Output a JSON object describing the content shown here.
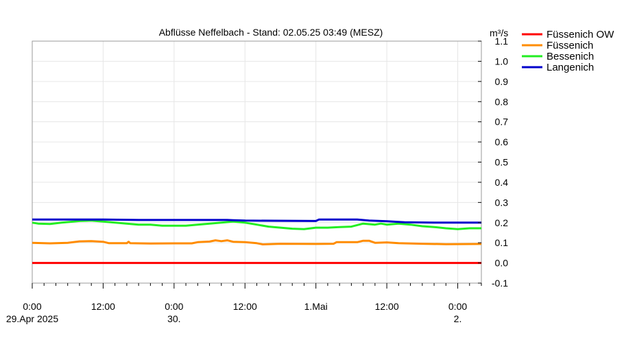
{
  "chart_data": {
    "type": "line",
    "title": "Abflüsse Neffelbach - Stand: 02.05.25 03:49 (MESZ)",
    "ylabel": "m³/s",
    "ylim": [
      -0.1,
      1.1
    ],
    "yticks": [
      "-0.1",
      "0.0",
      "0.1",
      "0.2",
      "0.3",
      "0.4",
      "0.5",
      "0.6",
      "0.7",
      "0.8",
      "0.9",
      "1.0",
      "1.1"
    ],
    "xlim": [
      0,
      76
    ],
    "xticks": [
      {
        "h": 0,
        "line1": "0:00",
        "line2": "29.Apr 2025"
      },
      {
        "h": 12,
        "line1": "12:00",
        "line2": ""
      },
      {
        "h": 24,
        "line1": "0:00",
        "line2": "30."
      },
      {
        "h": 36,
        "line1": "12:00",
        "line2": ""
      },
      {
        "h": 48,
        "line1": "1.Mai",
        "line2": ""
      },
      {
        "h": 60,
        "line1": "12:00",
        "line2": ""
      },
      {
        "h": 72,
        "line1": "0:00",
        "line2": "2."
      }
    ],
    "grid": true,
    "legend": "top-right",
    "x_unit": "hours since 29.Apr 2025 0:00",
    "series": [
      {
        "name": "Füssenich OW",
        "color": "#ff0000",
        "points": [
          [
            0,
            0.0
          ],
          [
            76,
            0.0
          ]
        ]
      },
      {
        "name": "Füssenich",
        "color": "#ff8c00",
        "points": [
          [
            0,
            0.1
          ],
          [
            3,
            0.097
          ],
          [
            6,
            0.1
          ],
          [
            8,
            0.107
          ],
          [
            10,
            0.108
          ],
          [
            12,
            0.105
          ],
          [
            13,
            0.098
          ],
          [
            16,
            0.098
          ],
          [
            16.3,
            0.105
          ],
          [
            16.6,
            0.098
          ],
          [
            20,
            0.096
          ],
          [
            24,
            0.097
          ],
          [
            27,
            0.097
          ],
          [
            28,
            0.103
          ],
          [
            30,
            0.106
          ],
          [
            31,
            0.112
          ],
          [
            32,
            0.108
          ],
          [
            33,
            0.112
          ],
          [
            34,
            0.105
          ],
          [
            36,
            0.103
          ],
          [
            38,
            0.098
          ],
          [
            39,
            0.092
          ],
          [
            42,
            0.095
          ],
          [
            48,
            0.094
          ],
          [
            51,
            0.095
          ],
          [
            51.5,
            0.103
          ],
          [
            55,
            0.103
          ],
          [
            56,
            0.11
          ],
          [
            57,
            0.11
          ],
          [
            58,
            0.1
          ],
          [
            60,
            0.102
          ],
          [
            62,
            0.098
          ],
          [
            66,
            0.095
          ],
          [
            70,
            0.093
          ],
          [
            76,
            0.094
          ]
        ]
      },
      {
        "name": "Bessenich",
        "color": "#22ee22",
        "points": [
          [
            0,
            0.2
          ],
          [
            1,
            0.195
          ],
          [
            3,
            0.193
          ],
          [
            5,
            0.2
          ],
          [
            7,
            0.205
          ],
          [
            8,
            0.208
          ],
          [
            10,
            0.21
          ],
          [
            12,
            0.205
          ],
          [
            14,
            0.2
          ],
          [
            16,
            0.195
          ],
          [
            18,
            0.19
          ],
          [
            20,
            0.19
          ],
          [
            22,
            0.185
          ],
          [
            24,
            0.185
          ],
          [
            26,
            0.185
          ],
          [
            28,
            0.19
          ],
          [
            30,
            0.195
          ],
          [
            32,
            0.2
          ],
          [
            34,
            0.205
          ],
          [
            36,
            0.2
          ],
          [
            38,
            0.19
          ],
          [
            40,
            0.18
          ],
          [
            42,
            0.175
          ],
          [
            44,
            0.17
          ],
          [
            46,
            0.168
          ],
          [
            48,
            0.175
          ],
          [
            50,
            0.175
          ],
          [
            52,
            0.178
          ],
          [
            54,
            0.18
          ],
          [
            56,
            0.195
          ],
          [
            58,
            0.19
          ],
          [
            59,
            0.195
          ],
          [
            60,
            0.19
          ],
          [
            62,
            0.195
          ],
          [
            64,
            0.19
          ],
          [
            66,
            0.182
          ],
          [
            68,
            0.178
          ],
          [
            70,
            0.172
          ],
          [
            72,
            0.168
          ],
          [
            74,
            0.172
          ],
          [
            76,
            0.172
          ]
        ]
      },
      {
        "name": "Langenich",
        "color": "#0000cc",
        "points": [
          [
            0,
            0.215
          ],
          [
            12,
            0.215
          ],
          [
            18,
            0.213
          ],
          [
            30,
            0.213
          ],
          [
            33,
            0.213
          ],
          [
            34,
            0.212
          ],
          [
            36,
            0.21
          ],
          [
            48,
            0.208
          ],
          [
            48.5,
            0.215
          ],
          [
            55,
            0.215
          ],
          [
            57,
            0.21
          ],
          [
            60,
            0.207
          ],
          [
            63,
            0.202
          ],
          [
            68,
            0.2
          ],
          [
            76,
            0.2
          ]
        ]
      }
    ]
  }
}
